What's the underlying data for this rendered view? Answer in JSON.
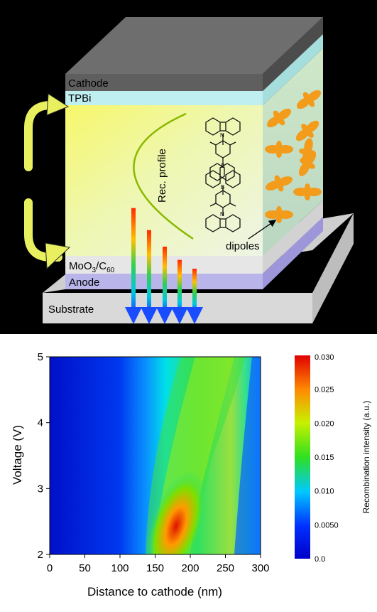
{
  "device_schematic": {
    "layers": {
      "cathode": "Cathode",
      "tpbi": "TPBi",
      "moo3": "MoO",
      "moo3_sub": "3",
      "moo3_c": "/C",
      "c60_sub": "60",
      "anode": "Anode",
      "substrate": "Substrate"
    },
    "annotations": {
      "rec_profile": "Rec. profile",
      "dipoles": "dipoles"
    },
    "molecule_atoms": {
      "n_top": "N",
      "b_top": "B",
      "b_bottom": "B",
      "n_bottom": "N"
    },
    "emission_bar_levels": [
      0.95,
      0.75,
      0.6,
      0.48,
      0.4
    ],
    "colors": {
      "cathode": "#5f5f5f",
      "tpbi": "#bfeff0",
      "emitter_layer": "#e9f6a8",
      "moo3": "#e6e6e6",
      "anode": "#b9b4ea",
      "substrate": "#d8d8d8",
      "arrow": "#e8f060",
      "dipole": "#f39b1b"
    }
  },
  "chart_data": {
    "type": "heatmap",
    "xlabel": "Distance to cathode (nm)",
    "ylabel": "Voltage (V)",
    "xlim": [
      0,
      300
    ],
    "ylim": [
      2,
      5
    ],
    "x_ticks": [
      "0",
      "50",
      "100",
      "150",
      "200",
      "250",
      "300"
    ],
    "y_ticks": [
      "2",
      "3",
      "4",
      "5"
    ],
    "colorbar": {
      "label": "Recombination intensity (a.u.)",
      "range": [
        0.0,
        0.03
      ],
      "ticks": [
        "0.0",
        "0.0050",
        "0.010",
        "0.015",
        "0.020",
        "0.025",
        "0.030"
      ]
    },
    "ridge": [
      {
        "voltage": 2.1,
        "peak_x": 195,
        "peak_value": 0.03
      },
      {
        "voltage": 2.5,
        "peak_x": 210,
        "peak_value": 0.026
      },
      {
        "voltage": 3.0,
        "peak_x": 225,
        "peak_value": 0.021
      },
      {
        "voltage": 3.5,
        "peak_x": 237,
        "peak_value": 0.018
      },
      {
        "voltage": 4.0,
        "peak_x": 248,
        "peak_value": 0.017
      },
      {
        "voltage": 4.5,
        "peak_x": 258,
        "peak_value": 0.0165
      },
      {
        "voltage": 5.0,
        "peak_x": 265,
        "peak_value": 0.016
      }
    ]
  }
}
